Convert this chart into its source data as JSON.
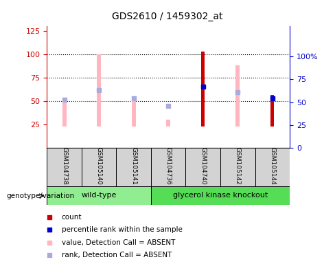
{
  "title": "GDS2610 / 1459302_at",
  "samples": [
    "GSM104738",
    "GSM105140",
    "GSM105141",
    "GSM104736",
    "GSM104740",
    "GSM105142",
    "GSM105144"
  ],
  "wild_type_count": 3,
  "count_values": [
    null,
    null,
    null,
    null,
    103,
    null,
    57
  ],
  "percentile_rank_values": [
    null,
    null,
    null,
    null,
    67,
    null,
    54
  ],
  "pink_bar_tops": [
    50,
    100,
    55,
    30,
    null,
    88,
    null
  ],
  "pink_bar_bottom": 23,
  "blue_square_values": [
    53,
    63,
    54,
    46,
    null,
    61,
    null
  ],
  "ylim_left": [
    0,
    130
  ],
  "ylim_right": [
    0,
    133
  ],
  "yticks_left": [
    25,
    50,
    75,
    100,
    125
  ],
  "yticks_right": [
    0,
    25,
    50,
    75,
    100
  ],
  "ytick_right_labels": [
    "0",
    "25",
    "50",
    "75",
    "100%"
  ],
  "grid_lines": [
    50,
    75,
    100
  ],
  "left_axis_color": "#CC0000",
  "right_axis_color": "#0000CC",
  "pink_bar_color": "#FFB6C1",
  "blue_square_color": "#AAAADD",
  "count_bar_color": "#CC0000",
  "percentile_bar_color": "#0000CC",
  "sample_bg": "#D3D3D3",
  "wt_group_color": "#90EE90",
  "ko_group_color": "#55DD55",
  "legend_items": [
    [
      "#CC0000",
      "count"
    ],
    [
      "#0000CC",
      "percentile rank within the sample"
    ],
    [
      "#FFB6C1",
      "value, Detection Call = ABSENT"
    ],
    [
      "#AAAADD",
      "rank, Detection Call = ABSENT"
    ]
  ]
}
